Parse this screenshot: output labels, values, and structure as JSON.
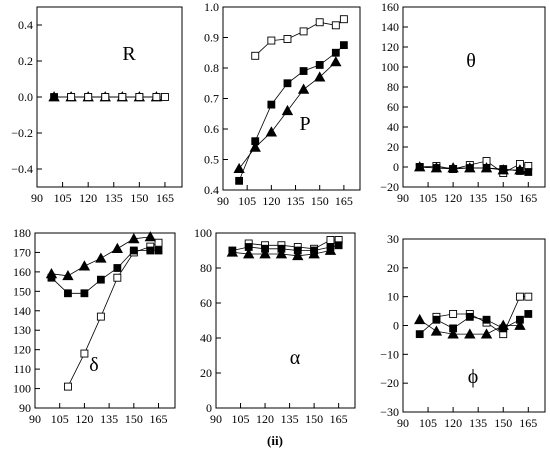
{
  "figure_caption": "(ii)",
  "chart_data": [
    {
      "id": "R",
      "type": "scatter",
      "panel_label": "R",
      "xlim": [
        90,
        175
      ],
      "ylim": [
        -0.5,
        0.5
      ],
      "xticks": [
        90,
        105,
        120,
        135,
        150,
        165
      ],
      "yticks": [
        0.4,
        0.2,
        0.0,
        -0.2,
        -0.4
      ],
      "ytick_labels": [
        "0.4",
        "0.2",
        "0.0",
        "−0.2",
        "−0.4"
      ],
      "series": [
        {
          "marker": "filled-triangle",
          "x": [
            100,
            110,
            120,
            130,
            140,
            150,
            160
          ],
          "y": [
            0.0,
            0.0,
            0.0,
            0.0,
            0.0,
            0.0,
            0.0
          ]
        },
        {
          "marker": "filled-square",
          "x": [
            100,
            110,
            120,
            130,
            140,
            150,
            160
          ],
          "y": [
            0.0,
            0.0,
            0.0,
            0.0,
            0.0,
            0.0,
            0.0
          ]
        },
        {
          "marker": "open-square",
          "x": [
            110,
            120,
            130,
            140,
            150,
            160,
            165
          ],
          "y": [
            0.0,
            0.0,
            0.0,
            0.0,
            0.0,
            0.0,
            0.0
          ]
        }
      ]
    },
    {
      "id": "P",
      "type": "line",
      "panel_label": "P",
      "xlim": [
        90,
        175
      ],
      "ylim": [
        0.4,
        1.0
      ],
      "xticks": [
        90,
        105,
        120,
        135,
        150,
        165
      ],
      "yticks": [
        1.0,
        0.9,
        0.8,
        0.7,
        0.6,
        0.5,
        0.4
      ],
      "ytick_labels": [
        "1.0",
        "0.9",
        "0.8",
        "0.7",
        "0.6",
        "0.5",
        "0.4"
      ],
      "series": [
        {
          "marker": "open-square",
          "x": [
            110,
            120,
            130,
            140,
            150,
            160,
            165
          ],
          "y": [
            0.84,
            0.89,
            0.895,
            0.92,
            0.95,
            0.94,
            0.96
          ]
        },
        {
          "marker": "filled-square",
          "x": [
            100,
            110,
            120,
            130,
            140,
            150,
            160,
            165
          ],
          "y": [
            0.43,
            0.56,
            0.68,
            0.75,
            0.79,
            0.81,
            0.85,
            0.875
          ]
        },
        {
          "marker": "filled-triangle",
          "x": [
            100,
            110,
            120,
            130,
            140,
            150,
            160
          ],
          "y": [
            0.47,
            0.54,
            0.59,
            0.66,
            0.73,
            0.77,
            0.82
          ]
        }
      ]
    },
    {
      "id": "theta",
      "type": "line",
      "panel_label": "θ",
      "xlim": [
        90,
        175
      ],
      "ylim": [
        -20,
        160
      ],
      "xticks": [
        90,
        105,
        120,
        135,
        150,
        165
      ],
      "yticks": [
        160,
        140,
        120,
        100,
        80,
        60,
        40,
        20,
        0,
        -20
      ],
      "ytick_labels": [
        "160",
        "140",
        "120",
        "100",
        "80",
        "60",
        "40",
        "20",
        "0",
        "−20"
      ],
      "series": [
        {
          "marker": "open-square",
          "x": [
            100,
            110,
            120,
            130,
            140,
            150,
            160,
            165
          ],
          "y": [
            0,
            1,
            -2,
            2,
            6,
            -6,
            3,
            1
          ]
        },
        {
          "marker": "filled-square",
          "x": [
            100,
            110,
            120,
            130,
            140,
            150,
            160,
            165
          ],
          "y": [
            0,
            -1,
            -2,
            -1,
            -1,
            -2,
            -4,
            -5
          ]
        },
        {
          "marker": "filled-triangle",
          "x": [
            100,
            110,
            120,
            130,
            140,
            150,
            160
          ],
          "y": [
            0,
            -1,
            -1,
            -1,
            -1,
            -3,
            -3
          ]
        }
      ]
    },
    {
      "id": "delta",
      "type": "line",
      "panel_label": "δ",
      "xlim": [
        90,
        175
      ],
      "ylim": [
        90,
        180
      ],
      "xticks": [
        90,
        105,
        120,
        135,
        150,
        165
      ],
      "yticks": [
        180,
        170,
        160,
        150,
        140,
        130,
        120,
        110,
        100,
        90
      ],
      "ytick_labels": [
        "180",
        "170",
        "160",
        "150",
        "140",
        "130",
        "120",
        "110",
        "100",
        "90"
      ],
      "series": [
        {
          "marker": "open-square",
          "x": [
            110,
            120,
            130,
            140,
            150,
            160,
            165
          ],
          "y": [
            101,
            118,
            137,
            157,
            170,
            173,
            175
          ]
        },
        {
          "marker": "filled-square",
          "x": [
            100,
            110,
            120,
            130,
            140,
            150,
            160,
            165
          ],
          "y": [
            157,
            149,
            149,
            156,
            162,
            171,
            171,
            171
          ]
        },
        {
          "marker": "filled-triangle",
          "x": [
            100,
            110,
            120,
            130,
            140,
            150,
            160
          ],
          "y": [
            159,
            158,
            163,
            167,
            172,
            177,
            178
          ]
        }
      ]
    },
    {
      "id": "alpha",
      "type": "line",
      "panel_label": "α",
      "xlim": [
        90,
        175
      ],
      "ylim": [
        0,
        100
      ],
      "xticks": [
        90,
        105,
        120,
        135,
        150,
        165
      ],
      "yticks": [
        100,
        80,
        60,
        40,
        20,
        0
      ],
      "ytick_labels": [
        "100",
        "80",
        "60",
        "40",
        "20",
        "0"
      ],
      "series": [
        {
          "marker": "open-square",
          "x": [
            110,
            120,
            130,
            140,
            150,
            160,
            165
          ],
          "y": [
            94,
            93,
            93,
            92,
            91,
            96,
            96
          ]
        },
        {
          "marker": "filled-square",
          "x": [
            100,
            110,
            120,
            130,
            140,
            150,
            160,
            165
          ],
          "y": [
            90,
            92,
            91,
            91,
            90,
            90,
            92,
            93
          ]
        },
        {
          "marker": "filled-triangle",
          "x": [
            100,
            110,
            120,
            130,
            140,
            150,
            160
          ],
          "y": [
            89,
            88,
            88,
            88,
            87,
            88,
            90
          ]
        }
      ]
    },
    {
      "id": "phi",
      "type": "line",
      "panel_label": "ϕ",
      "xlim": [
        90,
        175
      ],
      "ylim": [
        -30,
        30
      ],
      "xticks": [
        90,
        105,
        120,
        135,
        150,
        165
      ],
      "yticks": [
        30,
        20,
        10,
        0,
        -10,
        -20,
        -30
      ],
      "ytick_labels": [
        "30",
        "20",
        "10",
        "0",
        "−10",
        "−20",
        "−30"
      ],
      "series": [
        {
          "marker": "open-square",
          "x": [
            110,
            120,
            130,
            140,
            150,
            160,
            165
          ],
          "y": [
            3,
            4,
            4,
            1,
            -3,
            10,
            10
          ]
        },
        {
          "marker": "filled-square",
          "x": [
            100,
            110,
            120,
            130,
            140,
            150,
            160,
            165
          ],
          "y": [
            -3,
            2,
            -1,
            3,
            2,
            -1,
            2,
            4
          ]
        },
        {
          "marker": "filled-triangle",
          "x": [
            100,
            110,
            120,
            130,
            140,
            150,
            160
          ],
          "y": [
            2,
            -2,
            -3,
            -3,
            -3,
            0,
            0
          ]
        }
      ]
    }
  ]
}
